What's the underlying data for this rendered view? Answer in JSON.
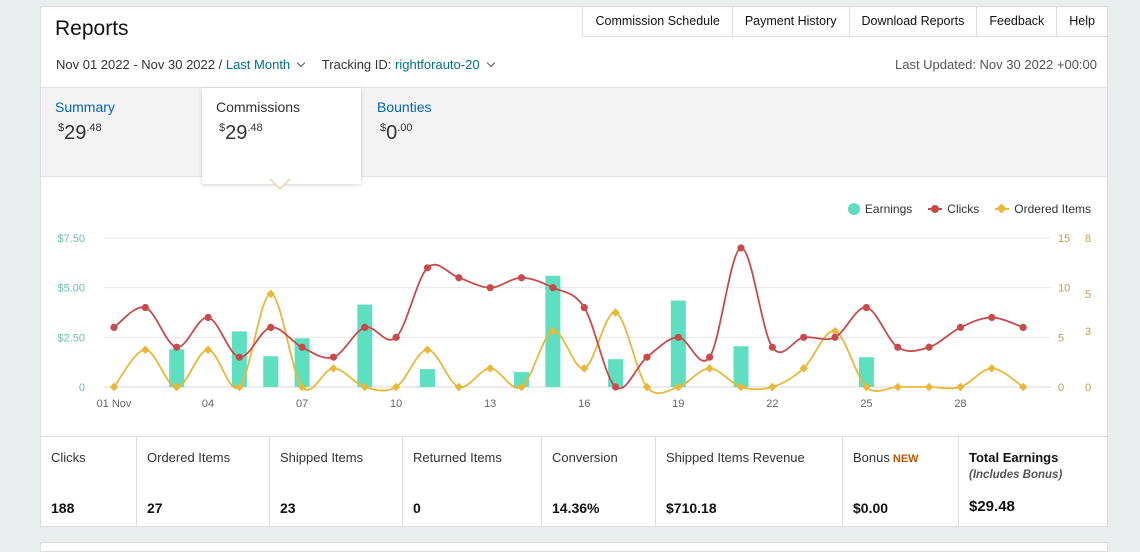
{
  "header": {
    "title": "Reports",
    "links": [
      "Commission Schedule",
      "Payment History",
      "Download Reports",
      "Feedback",
      "Help"
    ]
  },
  "filters": {
    "date_range": "Nov 01 2022 - Nov 30 2022",
    "separator": " / ",
    "period": "Last Month",
    "tracking_label": "Tracking ID:",
    "tracking_id": "rightforauto-20",
    "last_updated": "Last Updated: Nov 30 2022 +00:00"
  },
  "tabs": [
    {
      "label": "Summary",
      "currency": "$",
      "whole": "29",
      "cents": ".48",
      "active": false
    },
    {
      "label": "Commissions",
      "currency": "$",
      "whole": "29",
      "cents": ".48",
      "active": true
    },
    {
      "label": "Bounties",
      "currency": "$",
      "whole": "0",
      "cents": ".00",
      "active": false
    }
  ],
  "legend": {
    "earnings": "Earnings",
    "clicks": "Clicks",
    "ordered": "Ordered Items"
  },
  "colors": {
    "earnings": "#5ddfc0",
    "clicks": "#c84b4b",
    "ordered": "#e9b73a",
    "link": "#007185",
    "axis_left": "#6cbfae",
    "axis_right": "#c69a4a",
    "new_badge": "#c45500"
  },
  "chart_data": {
    "type": "bar",
    "x": [
      1,
      2,
      3,
      4,
      5,
      6,
      7,
      8,
      9,
      10,
      11,
      12,
      13,
      14,
      15,
      16,
      17,
      18,
      19,
      20,
      21,
      22,
      23,
      24,
      25,
      26,
      27,
      28,
      29,
      30
    ],
    "x_tick_labels": [
      "01 Nov",
      "04",
      "07",
      "10",
      "13",
      "16",
      "19",
      "22",
      "25",
      "28"
    ],
    "x_ticks": [
      1,
      4,
      7,
      10,
      13,
      16,
      19,
      22,
      25,
      28
    ],
    "y_left": {
      "ticks": [
        "$7.50",
        "$5.00",
        "$2.50",
        "0"
      ],
      "values": [
        7.5,
        5,
        2.5,
        0
      ],
      "ylim": [
        0,
        7.5
      ]
    },
    "y_right_clicks": {
      "ticks": [
        "15",
        "10",
        "5",
        "0"
      ],
      "values": [
        15,
        10,
        5,
        0
      ],
      "ylim": [
        0,
        15
      ]
    },
    "y_right_ordered": {
      "ticks": [
        "8",
        "5",
        "3",
        "0"
      ],
      "values": [
        8,
        5,
        3,
        0
      ],
      "ylim": [
        0,
        8
      ]
    },
    "series": [
      {
        "name": "Earnings",
        "kind": "bar",
        "axis": "left",
        "values": [
          0,
          0,
          1.9,
          0,
          2.8,
          1.55,
          2.45,
          0,
          4.15,
          0,
          0.9,
          0,
          0,
          0.75,
          5.6,
          0,
          1.4,
          0,
          4.35,
          0,
          2.05,
          0,
          0,
          0,
          1.5,
          0,
          0,
          0,
          0,
          0
        ]
      },
      {
        "name": "Clicks",
        "kind": "line",
        "axis": "right_clicks",
        "values": [
          6,
          8,
          4,
          7,
          3,
          6,
          4,
          3,
          6,
          5,
          12,
          11,
          10,
          11,
          10,
          8,
          0,
          3,
          5,
          3,
          14,
          4,
          5,
          5,
          8,
          4,
          4,
          6,
          7,
          6
        ]
      },
      {
        "name": "Ordered Items",
        "kind": "line",
        "axis": "right_ordered",
        "values": [
          0,
          2,
          0,
          2,
          0,
          5,
          0,
          1,
          0,
          0,
          2,
          0,
          1,
          0,
          3,
          1,
          4,
          0,
          0,
          1,
          0,
          0,
          1,
          3,
          0,
          0,
          0,
          0,
          1,
          0
        ]
      }
    ]
  },
  "summary": {
    "clicks": {
      "label": "Clicks",
      "value": "188"
    },
    "ordered": {
      "label": "Ordered Items",
      "value": "27"
    },
    "shipped": {
      "label": "Shipped Items",
      "value": "23"
    },
    "returned": {
      "label": "Returned Items",
      "value": "0"
    },
    "conversion": {
      "label": "Conversion",
      "value": "14.36%"
    },
    "revenue": {
      "label": "Shipped Items Revenue",
      "value": "$710.18"
    },
    "bonus": {
      "label": "Bonus",
      "badge": "NEW",
      "value": "$0.00"
    },
    "total": {
      "label": "Total Earnings",
      "sub": "(Includes Bonus)",
      "value": "$29.48"
    }
  }
}
